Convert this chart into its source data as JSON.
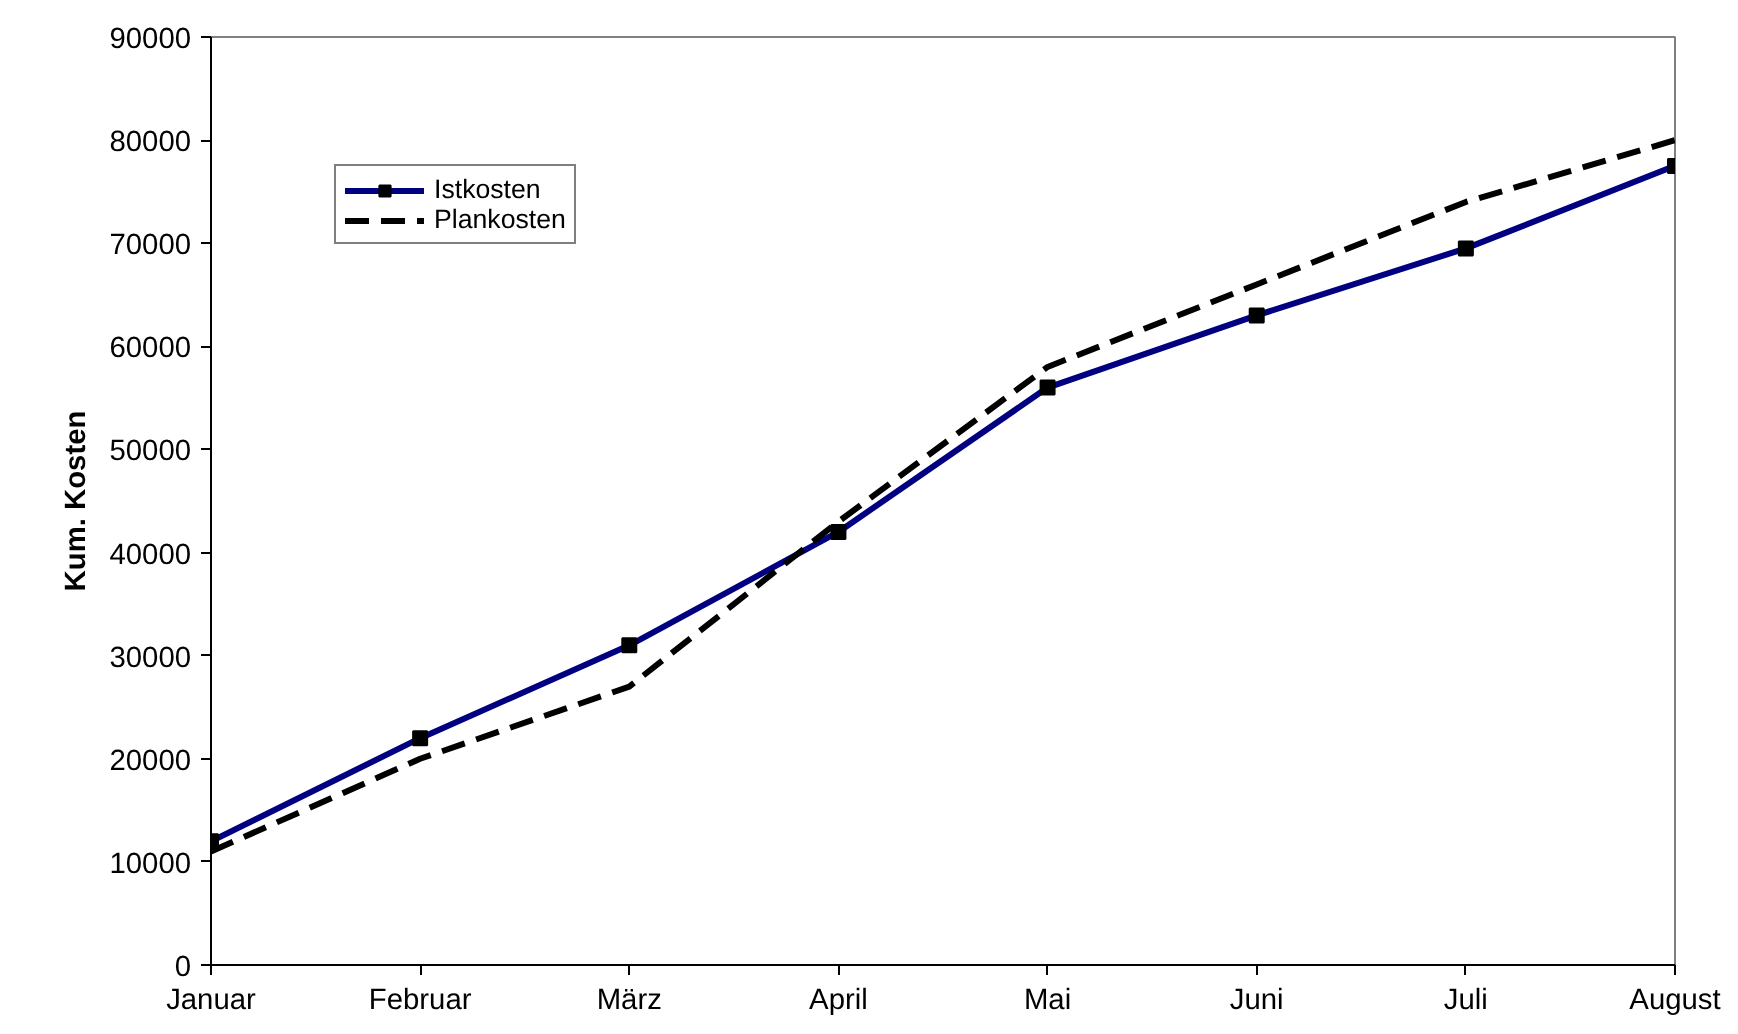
{
  "chart_data": {
    "type": "line",
    "ylabel": "Kum. Kosten",
    "categories": [
      "Januar",
      "Februar",
      "März",
      "April",
      "Mai",
      "Juni",
      "Juli",
      "August"
    ],
    "series": [
      {
        "name": "Istkosten",
        "color": "#000080",
        "marker": "square",
        "line_style": "solid",
        "values": [
          12000,
          22000,
          31000,
          42000,
          56000,
          63000,
          69500,
          77500
        ]
      },
      {
        "name": "Plankosten",
        "color": "#000000",
        "marker": "none",
        "line_style": "dashed",
        "values": [
          11000,
          20000,
          27000,
          43000,
          58000,
          66000,
          74000,
          80000
        ]
      }
    ],
    "ylim": [
      0,
      90000
    ],
    "yticks": [
      0,
      10000,
      20000,
      30000,
      40000,
      50000,
      60000,
      70000,
      80000,
      90000
    ],
    "grid": false,
    "legend": "top left"
  }
}
